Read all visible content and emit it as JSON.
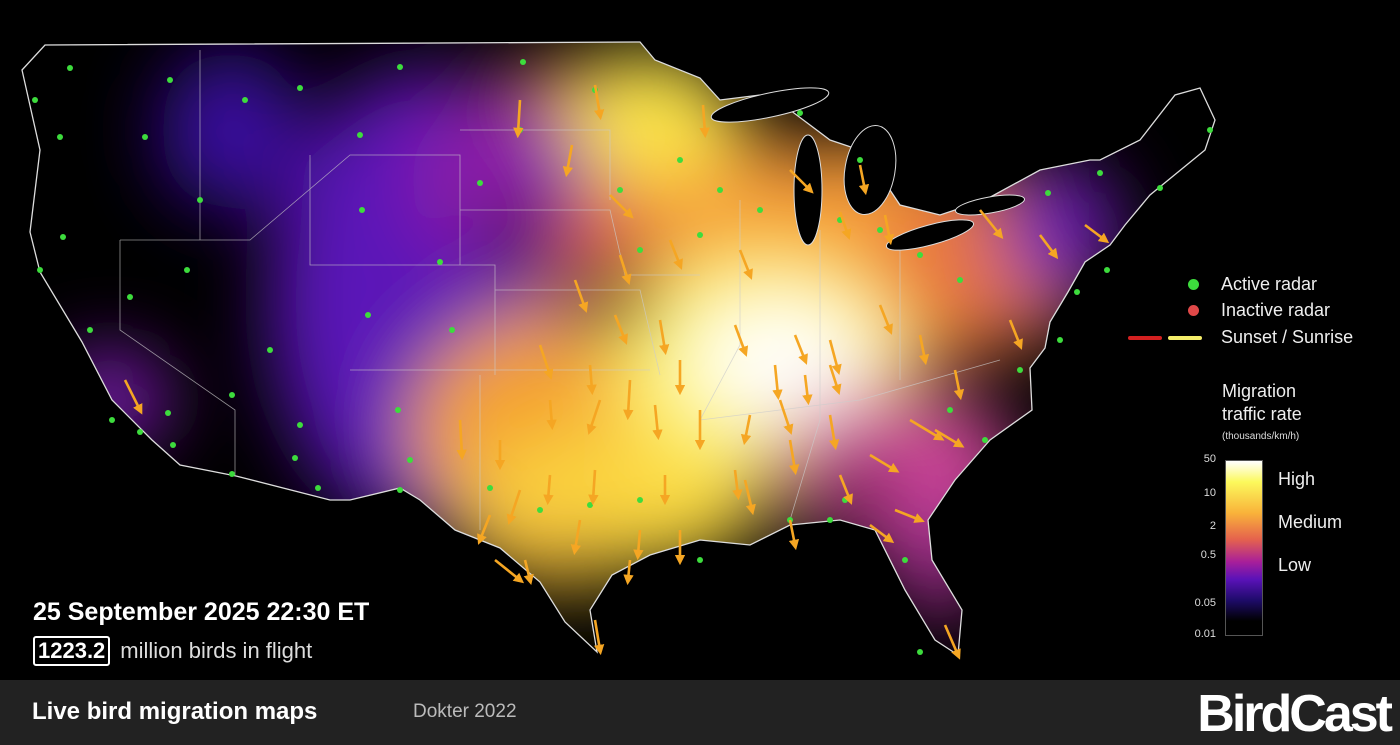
{
  "map": {
    "colors": {
      "active_radar": "#3ddc3d",
      "inactive_radar": "#e04848",
      "arrow": "#f5a623",
      "border": "#dddddd",
      "sunset": "#d42020",
      "sunrise": "#f5ee6a"
    }
  },
  "legend": {
    "active_radar": "Active radar",
    "inactive_radar": "Inactive radar",
    "sunset_sunrise": "Sunset / Sunrise"
  },
  "colorbar": {
    "title_line1": "Migration",
    "title_line2": "traffic rate",
    "unit": "(thousands/km/h)",
    "ticks": [
      "50",
      "10",
      "2",
      "0.5",
      "0.05",
      "0.01"
    ],
    "levels": [
      "High",
      "Medium",
      "Low"
    ],
    "scale": "log"
  },
  "info": {
    "datetime": "25 September 2025 22:30 ET",
    "birds_count": "1223.2",
    "birds_label": "million birds in flight"
  },
  "footer": {
    "title": "Live bird migration maps",
    "citation": "Dokter 2022",
    "logo": "BirdCast"
  }
}
